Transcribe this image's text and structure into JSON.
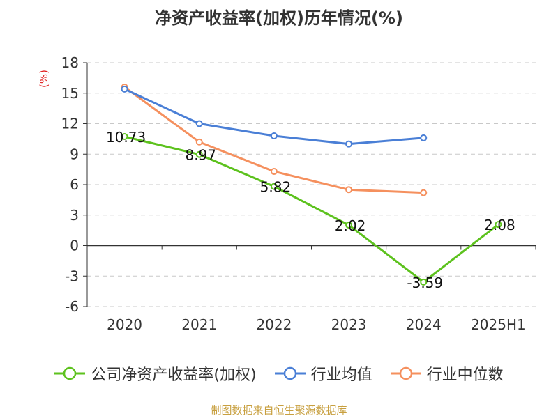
{
  "chart_data": {
    "type": "line",
    "title": "净资产收益率(加权)历年情况(%)",
    "ylabel": "(%)",
    "categories": [
      "2020",
      "2021",
      "2022",
      "2023",
      "2024",
      "2025H1"
    ],
    "ylim": [
      -6,
      18
    ],
    "yticks": [
      -6,
      -3,
      0,
      3,
      6,
      9,
      12,
      15,
      18
    ],
    "grid": true,
    "legend_position": "bottom",
    "series": [
      {
        "name": "公司净资产收益率(加权)",
        "color": "#5dc21e",
        "values": [
          10.73,
          8.97,
          5.82,
          2.02,
          -3.59,
          2.08
        ],
        "labels": [
          "10.73",
          "8.97",
          "5.82",
          "2.02",
          "-3.59",
          "2.08"
        ]
      },
      {
        "name": "行业均值",
        "color": "#4a7fd6",
        "values": [
          15.4,
          12.0,
          10.8,
          10.0,
          10.6,
          null
        ]
      },
      {
        "name": "行业中位数",
        "color": "#f5905e",
        "values": [
          15.6,
          10.2,
          7.3,
          5.5,
          5.2,
          null
        ]
      }
    ]
  },
  "source_note": "制图数据来自恒生聚源数据库"
}
